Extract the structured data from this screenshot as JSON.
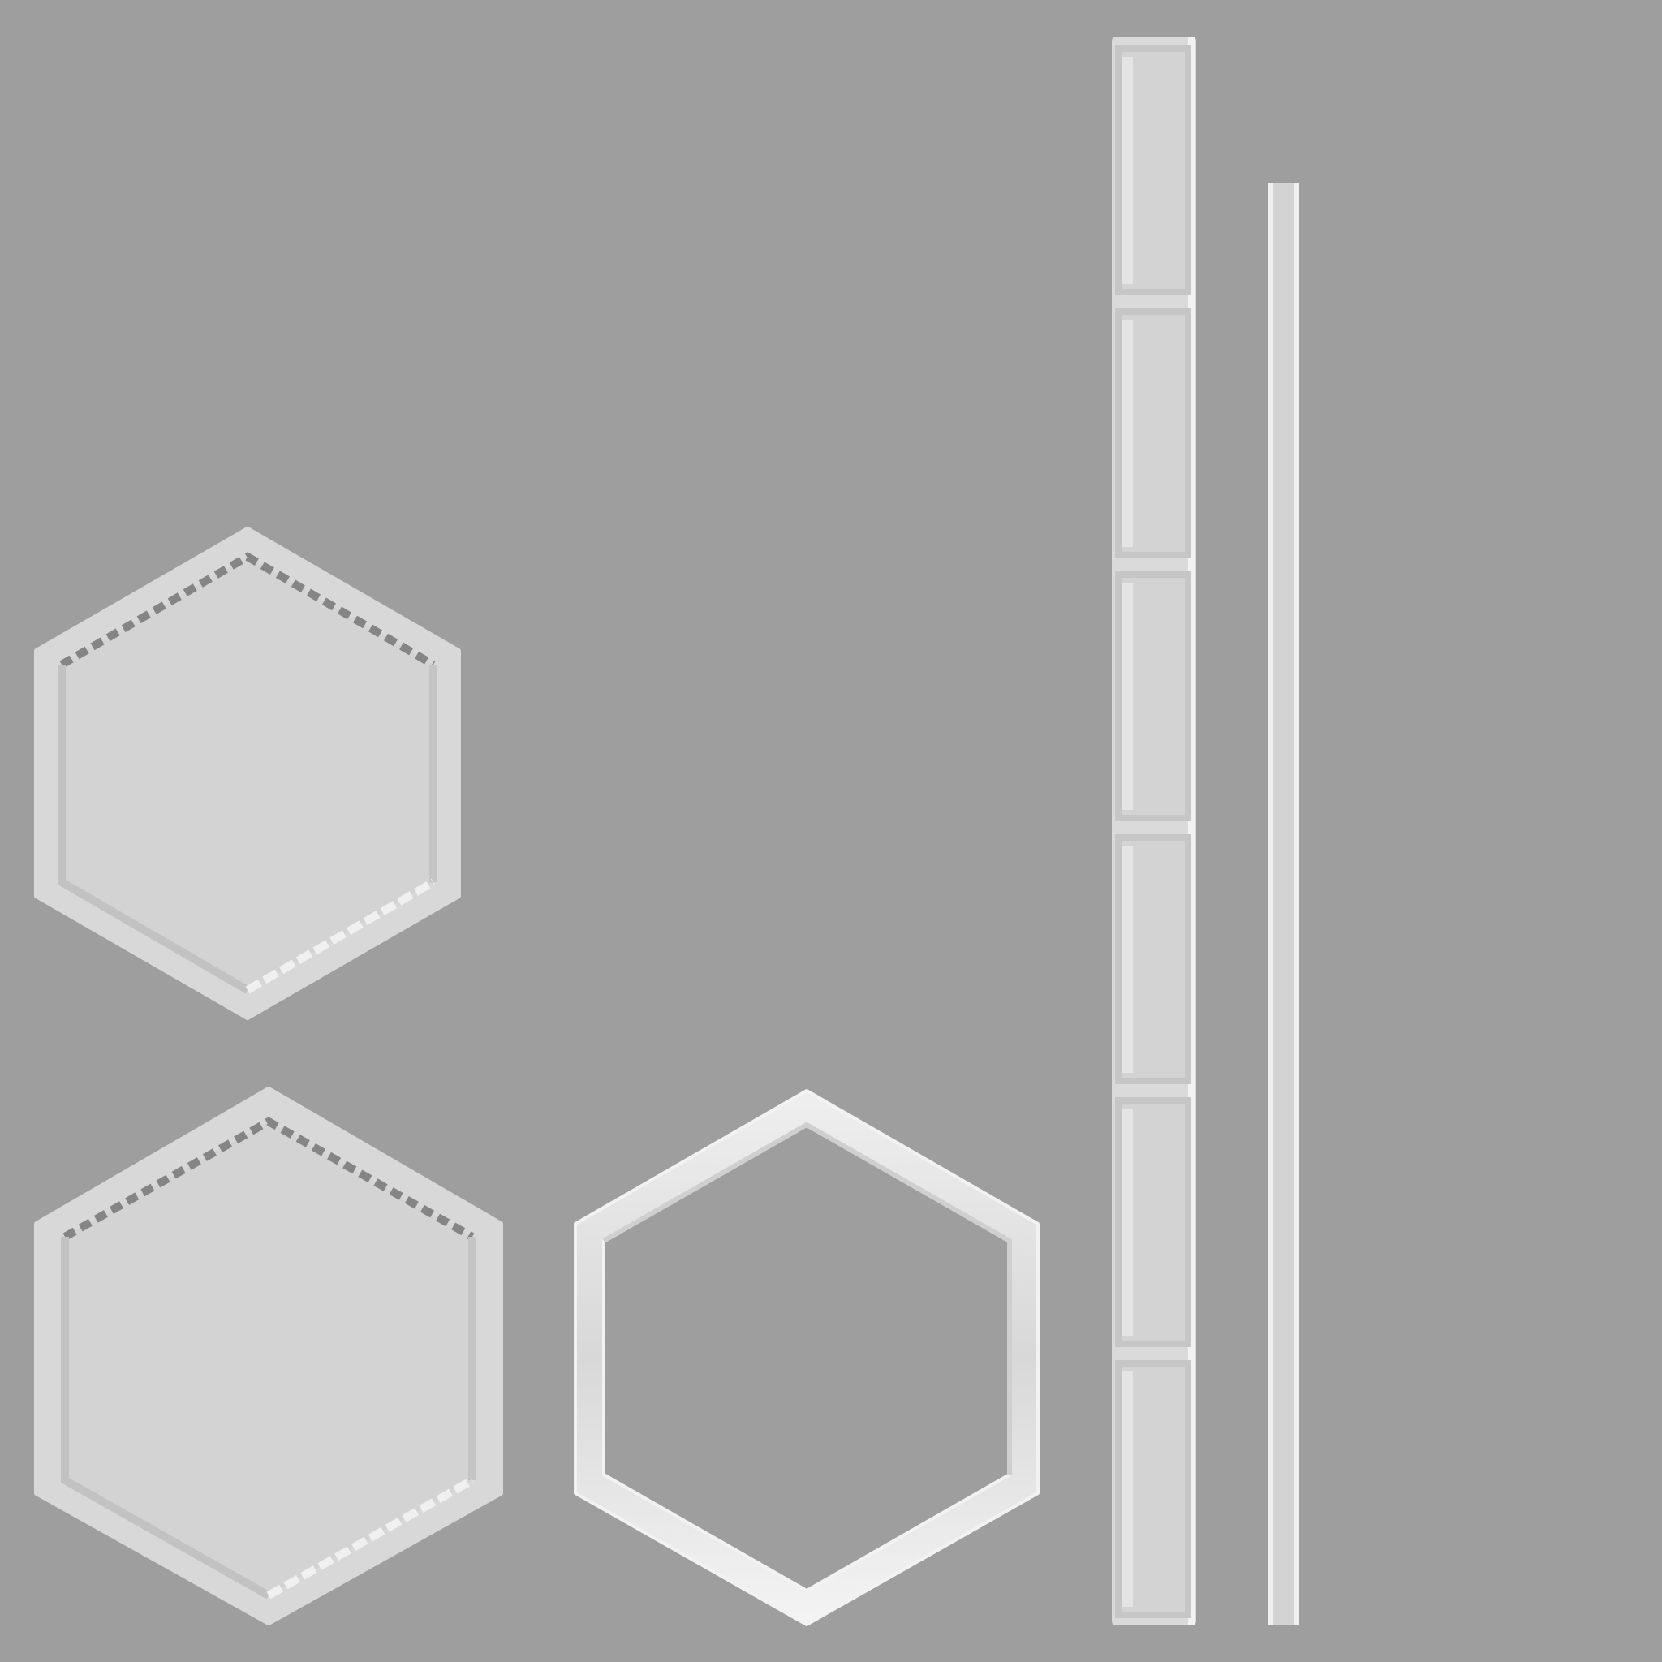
{
  "sprite_sheet": {
    "background_color": "#9e9e9e",
    "colors": {
      "panel_fill": "#d3d3d3",
      "panel_rim": "#dcdcdc",
      "highlight": "#f2f2f2",
      "shadow": "#bdbdbd",
      "dark_edge": "#808080",
      "inner_light": "#e6e6e6"
    },
    "hex_tiles": [
      {
        "name": "hex-tile-small",
        "style": "filled-beveled"
      },
      {
        "name": "hex-tile-large",
        "style": "filled-beveled"
      },
      {
        "name": "hex-tile-outline",
        "style": "outline-frame"
      }
    ],
    "bars": [
      {
        "name": "segmented-bar",
        "segments": 6,
        "orientation": "vertical"
      },
      {
        "name": "thin-bar",
        "segments": 1,
        "orientation": "vertical"
      }
    ]
  }
}
